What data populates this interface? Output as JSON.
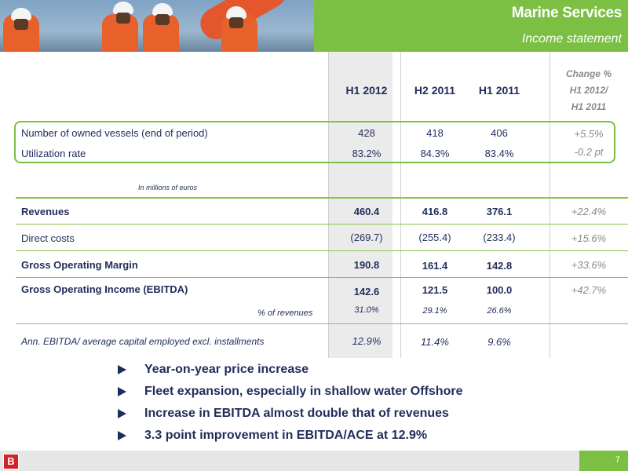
{
  "header": {
    "title": "Marine Services",
    "subtitle": "Income statement"
  },
  "columns": {
    "h1_2012": "H1 2012",
    "h2_2011": "H2 2011",
    "h1_2011": "H1 2011",
    "change_line1": "Change %",
    "change_line2": "H1 2012/",
    "change_line3": "H1 2011"
  },
  "rows": {
    "vessels": {
      "label": "Number of owned vessels (end of period)",
      "h1_2012": "428",
      "h2_2011": "418",
      "h1_2011": "406",
      "change": "+5.5%"
    },
    "utilization": {
      "label": "Utilization rate",
      "h1_2012": "83.2%",
      "h2_2011": "84.3%",
      "h1_2011": "83.4%",
      "change": "-0.2 pt"
    },
    "unit_note": "In millions of euros",
    "revenues": {
      "label": "Revenues",
      "h1_2012": "460.4",
      "h2_2011": "416.8",
      "h1_2011": "376.1",
      "change": "+22.4%"
    },
    "direct_costs": {
      "label": "Direct costs",
      "h1_2012": "(269.7)",
      "h2_2011": "(255.4)",
      "h1_2011": "(233.4)",
      "change": "+15.6%"
    },
    "gom": {
      "label": "Gross Operating Margin",
      "h1_2012": "190.8",
      "h2_2011": "161.4",
      "h1_2011": "142.8",
      "change": "+33.6%"
    },
    "ebitda": {
      "label": "Gross Operating Income (EBITDA)",
      "h1_2012": "142.6",
      "h2_2011": "121.5",
      "h1_2011": "100.0",
      "change": "+42.7%"
    },
    "pct_revenues": {
      "label": "% of revenues",
      "h1_2012": "31.0%",
      "h2_2011": "29.1%",
      "h1_2011": "26.6%"
    },
    "ace": {
      "label": "Ann. EBITDA/ average capital employed excl. installments",
      "h1_2012": "12.9%",
      "h2_2011": "11.4%",
      "h1_2011": "9.6%"
    }
  },
  "bullets": [
    "Year-on-year price increase",
    "Fleet expansion, especially in shallow water Offshore",
    "Increase in EBITDA almost double that of revenues",
    "3.3 point improvement in EBITDA/ACE at 12.9%"
  ],
  "footer": {
    "page_number": "7",
    "logo_letter": "B"
  },
  "colors": {
    "brand_green": "#7bc043",
    "text_navy": "#1f2d5a",
    "change_grey": "#8a8a8a",
    "logo_red": "#d42027"
  }
}
